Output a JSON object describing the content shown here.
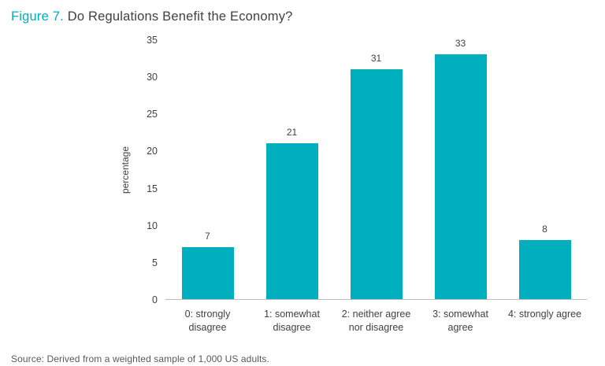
{
  "title": {
    "figure": "Figure 7.",
    "text": "Do Regulations Benefit the Economy?"
  },
  "source": "Source: Derived from a weighted sample of 1,000 US adults.",
  "colors": {
    "accent": "#00AFBE",
    "bar": "#00AFBE",
    "text_dark": "#414042",
    "text_gray": "#58595B",
    "axis_line": "#BCBEC0"
  },
  "chart_data": {
    "type": "bar",
    "title": "Figure 7. Do Regulations Benefit the Economy?",
    "categories": [
      "0: strongly disagree",
      "1: somewhat disagree",
      "2: neither agree nor disagree",
      "3: somewhat agree",
      "4: strongly agree"
    ],
    "category_lines": [
      [
        "0: strongly",
        "disagree"
      ],
      [
        "1: somewhat",
        "disagree"
      ],
      [
        "2: neither agree",
        "nor disagree"
      ],
      [
        "3: somewhat",
        "agree"
      ],
      [
        "4: strongly agree"
      ]
    ],
    "values": [
      7,
      21,
      31,
      33,
      8
    ],
    "value_labels": [
      "7",
      "21",
      "31",
      "33",
      "8"
    ],
    "xlabel": "",
    "ylabel": "percentage",
    "ylim": [
      0,
      35
    ],
    "yticks": [
      0,
      5,
      10,
      15,
      20,
      25,
      30,
      35
    ],
    "grid": false,
    "legend": false
  }
}
